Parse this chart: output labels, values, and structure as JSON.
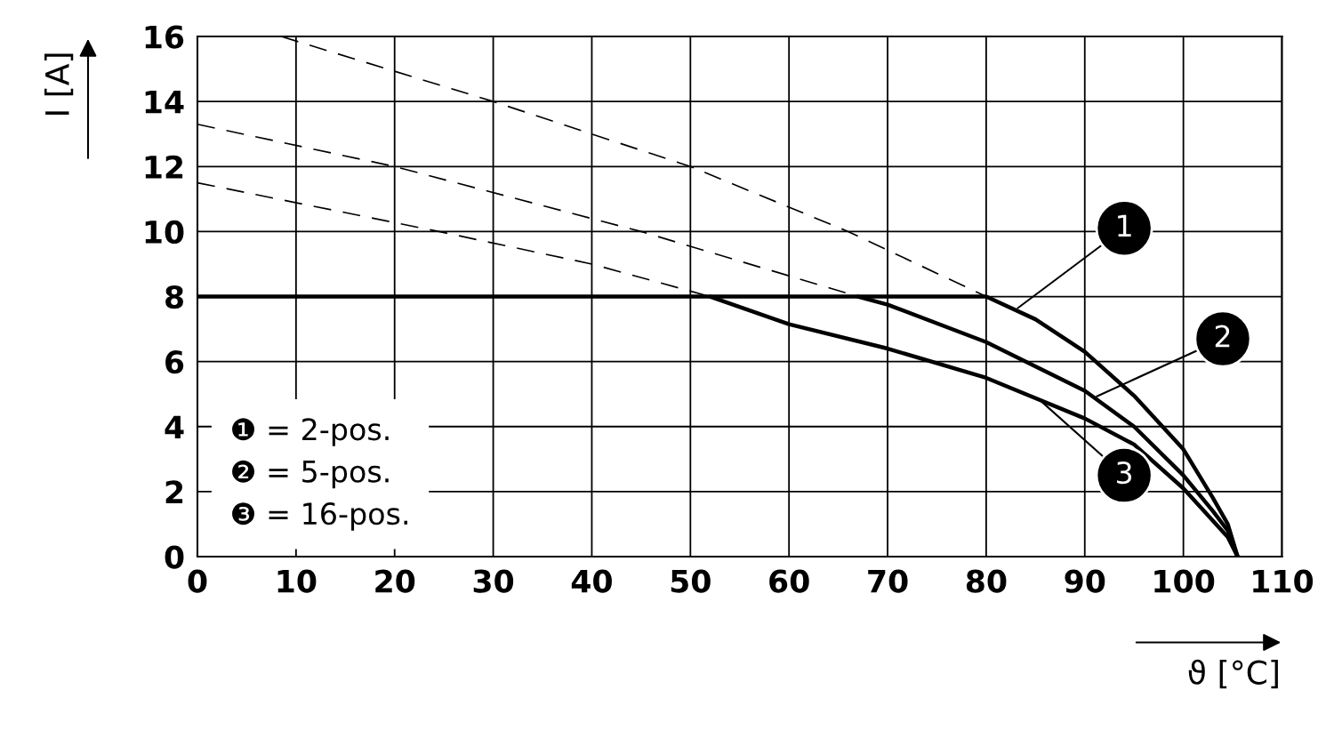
{
  "chart_data": {
    "type": "line",
    "xlabel": "ϑ [°C]",
    "ylabel": "I [A]",
    "xlim": [
      0,
      110
    ],
    "ylim": [
      0,
      16
    ],
    "xticks": [
      0,
      10,
      20,
      30,
      40,
      50,
      60,
      70,
      80,
      90,
      100,
      110
    ],
    "yticks": [
      0,
      2,
      4,
      6,
      8,
      10,
      12,
      14,
      16
    ],
    "grid": true,
    "marker": "none",
    "series": [
      {
        "color": "#000000",
        "line_style": "solid",
        "x": [
          0,
          80,
          85,
          90,
          95,
          100,
          103,
          104.5,
          105.5
        ],
        "values": [
          8,
          8,
          7.3,
          6.3,
          4.95,
          3.3,
          1.8,
          1.0,
          0
        ]
      },
      {
        "color": "#000000",
        "line_style": "solid",
        "x": [
          67,
          70,
          80,
          90,
          95,
          100,
          103,
          104.5,
          105.5
        ],
        "values": [
          8,
          7.75,
          6.6,
          5.1,
          4.0,
          2.5,
          1.4,
          0.8,
          0
        ]
      },
      {
        "color": "#000000",
        "line_style": "solid",
        "x": [
          52,
          60,
          70,
          80,
          90,
          95,
          100,
          103,
          104.5,
          105.5
        ],
        "values": [
          8,
          7.15,
          6.4,
          5.5,
          4.25,
          3.45,
          2.1,
          1.1,
          0.6,
          0
        ]
      },
      {
        "color": "#000000",
        "line_style": "dashed",
        "x": [
          8.5,
          30,
          50,
          66,
          80
        ],
        "values": [
          16,
          14,
          12,
          10,
          8
        ]
      },
      {
        "color": "#000000",
        "line_style": "dashed",
        "x": [
          0,
          20,
          45,
          67
        ],
        "values": [
          13.3,
          12,
          10,
          8
        ]
      },
      {
        "color": "#000000",
        "line_style": "dashed",
        "x": [
          0,
          24.5,
          40,
          52
        ],
        "values": [
          11.5,
          10,
          9,
          8
        ]
      }
    ],
    "annotations": [
      {
        "text": "1",
        "x": 83,
        "y": 7.6
      },
      {
        "text": "2",
        "x": 91,
        "y": 4.9
      },
      {
        "text": "3",
        "x": 85.5,
        "y": 4.8
      },
      "❶ = 2-pos.",
      "❷ = 5-pos.",
      "❸ = 16-pos."
    ]
  }
}
